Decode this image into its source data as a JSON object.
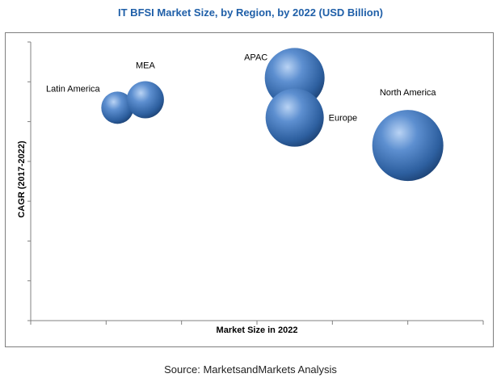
{
  "chart_data": {
    "type": "bubble",
    "title": "IT BFSI Market Size, by Region, by 2022 (USD Billion)",
    "xlabel": "Market Size in 2022",
    "ylabel": "CAGR (2017-2022)",
    "grid": false,
    "x_ticks": 6,
    "y_ticks": 7,
    "xlim": [
      0,
      6
    ],
    "ylim": [
      0,
      7
    ],
    "series": [
      {
        "name": "Latin America",
        "x": 1.15,
        "y": 5.35,
        "size": 20,
        "label_position": "upper-left"
      },
      {
        "name": "MEA",
        "x": 1.52,
        "y": 5.55,
        "size": 23,
        "label_position": "above"
      },
      {
        "name": "APAC",
        "x": 3.5,
        "y": 6.1,
        "size": 37,
        "label_position": "upper-left"
      },
      {
        "name": "Europe",
        "x": 3.5,
        "y": 5.1,
        "size": 36,
        "label_position": "right"
      },
      {
        "name": "North America",
        "x": 5.0,
        "y": 4.4,
        "size": 44,
        "label_position": "upper-right"
      }
    ]
  },
  "source": "Source: MarketsandMarkets Analysis"
}
